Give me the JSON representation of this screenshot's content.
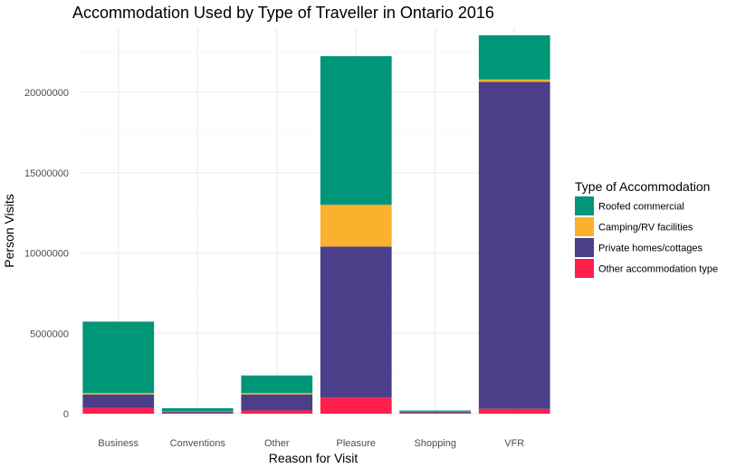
{
  "chart_data": {
    "type": "bar",
    "stacked": true,
    "title": "Accommodation Used by Type of Traveller in Ontario 2016",
    "xlabel": "Reason for Visit",
    "ylabel": "Person Visits",
    "categories": [
      "Business",
      "Conventions",
      "Other",
      "Pleasure",
      "Shopping",
      "VFR"
    ],
    "ylim": [
      0,
      24000000
    ],
    "yticks": [
      {
        "value": 0,
        "label": "0"
      },
      {
        "value": 5000000,
        "label": "5000000"
      },
      {
        "value": 10000000,
        "label": "10000000"
      },
      {
        "value": 15000000,
        "label": "15000000"
      },
      {
        "value": 20000000,
        "label": "20000000"
      }
    ],
    "grid": true,
    "legend_title": "Type of Accommodation",
    "legend_position": "right",
    "series": [
      {
        "name": "Other accommodation type",
        "color": "#ff1f4b",
        "values": [
          370000,
          60000,
          200000,
          1000000,
          50000,
          300000
        ]
      },
      {
        "name": "Private homes/cottages",
        "color": "#4b3f8a",
        "values": [
          830000,
          60000,
          1000000,
          9400000,
          60000,
          20350000
        ]
      },
      {
        "name": "Camping/RV facilities",
        "color": "#fbb12d",
        "values": [
          80000,
          20000,
          80000,
          2600000,
          20000,
          150000
        ]
      },
      {
        "name": "Roofed commercial",
        "color": "#009678",
        "values": [
          4450000,
          200000,
          1100000,
          9250000,
          70000,
          2750000
        ]
      }
    ],
    "legend_order": [
      "Roofed commercial",
      "Camping/RV facilities",
      "Private homes/cottages",
      "Other accommodation type"
    ]
  }
}
